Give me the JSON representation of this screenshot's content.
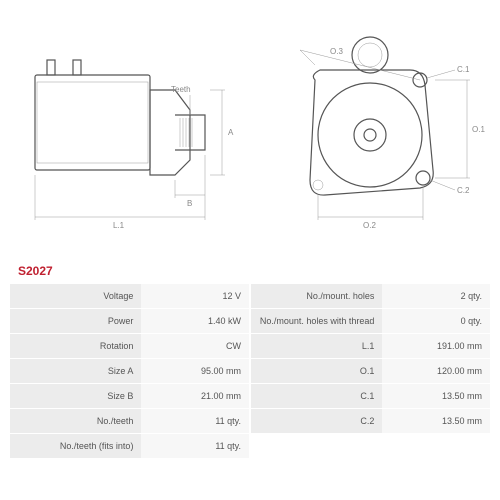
{
  "part_code": "S2027",
  "drawing_labels": {
    "teeth": "Teeth",
    "A": "A",
    "B": "B",
    "L1": "L.1",
    "O1": "O.1",
    "O2": "O.2",
    "O3": "O.3",
    "C1": "C.1",
    "C2": "C.2"
  },
  "specs_left": [
    {
      "label": "Voltage",
      "value": "12 V"
    },
    {
      "label": "Power",
      "value": "1.40 kW"
    },
    {
      "label": "Rotation",
      "value": "CW"
    },
    {
      "label": "Size A",
      "value": "95.00 mm"
    },
    {
      "label": "Size B",
      "value": "21.00 mm"
    },
    {
      "label": "No./teeth",
      "value": "11 qty."
    },
    {
      "label": "No./teeth (fits into)",
      "value": "11 qty."
    }
  ],
  "specs_right": [
    {
      "label": "No./mount. holes",
      "value": "2 qty."
    },
    {
      "label": "No./mount. holes with thread",
      "value": "0 qty."
    },
    {
      "label": "L.1",
      "value": "191.00 mm"
    },
    {
      "label": "O.1",
      "value": "120.00 mm"
    },
    {
      "label": "C.1",
      "value": "13.50 mm"
    },
    {
      "label": "C.2",
      "value": "13.50 mm"
    }
  ],
  "colors": {
    "accent": "#c02030",
    "row_label_bg": "#ececec",
    "row_value_bg": "#f7f7f7",
    "line": "#555555",
    "dim_line": "#999999"
  }
}
